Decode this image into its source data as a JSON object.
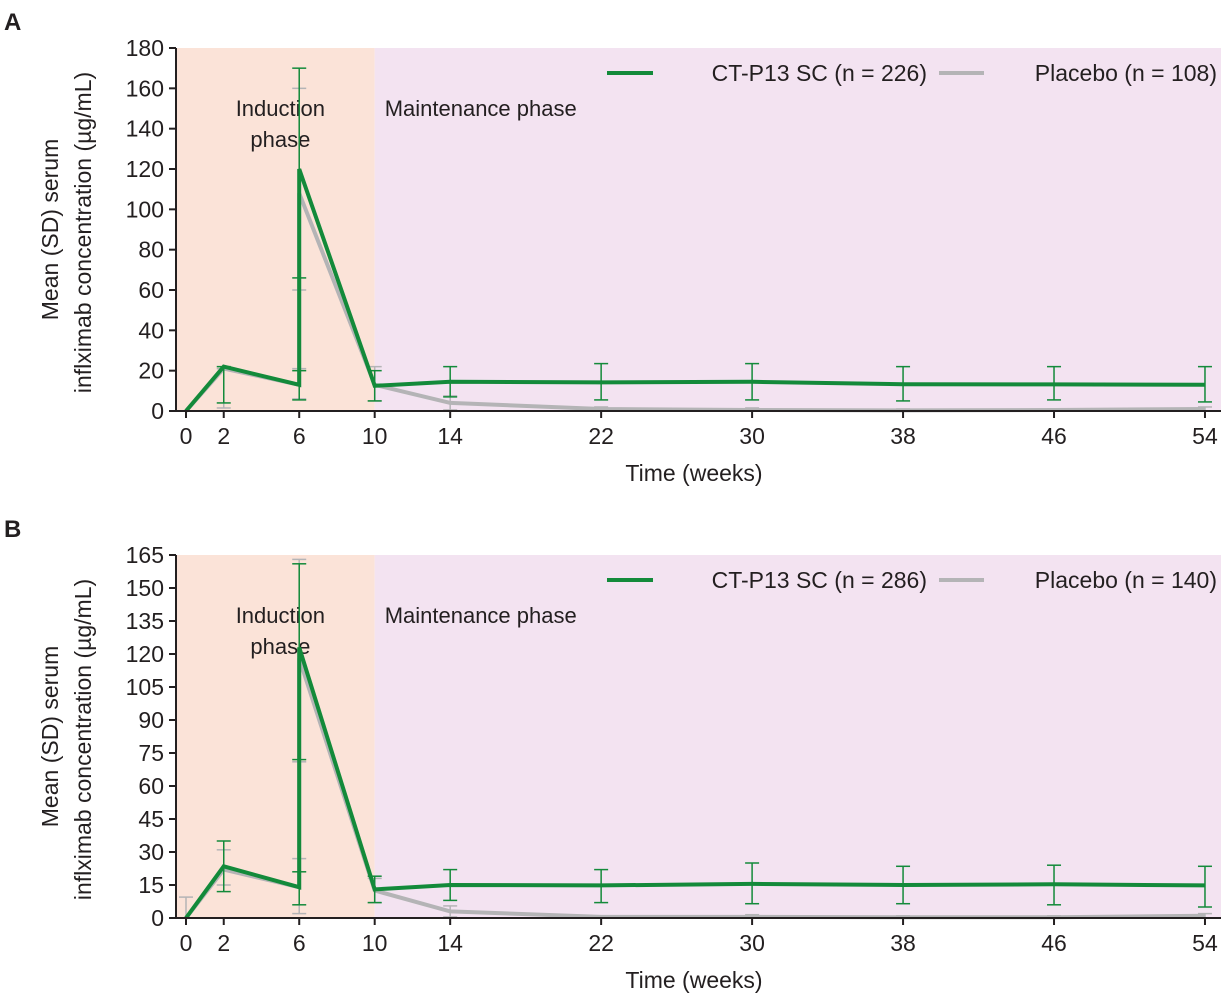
{
  "colors": {
    "induction_bg": "#fbe3d8",
    "maintenance_bg": "#f3e3f1",
    "ctp13": "#138a3a",
    "placebo": "#b4b4b6",
    "axis": "#231f20"
  },
  "chart_data": [
    {
      "type": "line",
      "panel": "A",
      "xlabel": "Time (weeks)",
      "ylabel_line1": "Mean (SD) serum",
      "ylabel_line2": "inflximab concentration (µg/mL)",
      "ylim": [
        0,
        180
      ],
      "yticks": [
        0,
        20,
        40,
        60,
        80,
        100,
        120,
        140,
        160,
        180
      ],
      "xlim": [
        -0.5,
        55
      ],
      "xticks": [
        0,
        2,
        6,
        10,
        14,
        22,
        30,
        38,
        46,
        54
      ],
      "phases": [
        {
          "label_line1": "Induction",
          "label_line2": "phase",
          "start": -0.5,
          "end": 10
        },
        {
          "label_line1": "Maintenance phase",
          "label_line2": "",
          "start": 10,
          "end": 55
        }
      ],
      "legend_position": "top-right",
      "series": [
        {
          "name": "CT-P13 SC (n = 226)",
          "color_key": "ctp13",
          "points": [
            {
              "x": 0,
              "y": 0,
              "sd_low": 0,
              "sd_high": 0
            },
            {
              "x": 2,
              "y": 22,
              "sd_low": 4,
              "sd_high": 22
            },
            {
              "x": 6,
              "y": 13,
              "sd_low": 5.5,
              "sd_high": 20
            },
            {
              "x": 6,
              "y": 120,
              "sd_low": 66,
              "sd_high": 170
            },
            {
              "x": 10,
              "y": 12.5,
              "sd_low": 5,
              "sd_high": 20
            },
            {
              "x": 14,
              "y": 14.5,
              "sd_low": 7,
              "sd_high": 22
            },
            {
              "x": 22,
              "y": 14.2,
              "sd_low": 5.5,
              "sd_high": 23.5
            },
            {
              "x": 30,
              "y": 14.5,
              "sd_low": 5.5,
              "sd_high": 23.5
            },
            {
              "x": 38,
              "y": 13.3,
              "sd_low": 5,
              "sd_high": 22
            },
            {
              "x": 46,
              "y": 13.2,
              "sd_low": 5.5,
              "sd_high": 22
            },
            {
              "x": 54,
              "y": 13,
              "sd_low": 4.5,
              "sd_high": 22
            }
          ]
        },
        {
          "name": "Placebo (n = 108)",
          "color_key": "placebo",
          "points": [
            {
              "x": 0,
              "y": 0,
              "sd_low": 0,
              "sd_high": 0
            },
            {
              "x": 2,
              "y": 21,
              "sd_low": 1.5,
              "sd_high": 21
            },
            {
              "x": 6,
              "y": 13,
              "sd_low": 6,
              "sd_high": 21
            },
            {
              "x": 6,
              "y": 108,
              "sd_low": 60,
              "sd_high": 160
            },
            {
              "x": 10,
              "y": 13,
              "sd_low": 5,
              "sd_high": 22
            },
            {
              "x": 14,
              "y": 4,
              "sd_low": 0.5,
              "sd_high": 7.5
            },
            {
              "x": 22,
              "y": 1,
              "sd_low": 0,
              "sd_high": 2
            },
            {
              "x": 30,
              "y": 0.5,
              "sd_low": 0,
              "sd_high": 1.5
            },
            {
              "x": 38,
              "y": 0.3,
              "sd_low": 0,
              "sd_high": 1
            },
            {
              "x": 46,
              "y": 0.5,
              "sd_low": 0,
              "sd_high": 1
            },
            {
              "x": 54,
              "y": 1,
              "sd_low": 0,
              "sd_high": 2
            }
          ]
        }
      ]
    },
    {
      "type": "line",
      "panel": "B",
      "xlabel": "Time (weeks)",
      "ylabel_line1": "Mean (SD) serum",
      "ylabel_line2": "inflximab concentration (µg/mL)",
      "ylim": [
        0,
        165
      ],
      "yticks": [
        0,
        15,
        30,
        45,
        60,
        75,
        90,
        105,
        120,
        135,
        150,
        165
      ],
      "xlim": [
        -0.5,
        55
      ],
      "xticks": [
        0,
        2,
        6,
        10,
        14,
        22,
        30,
        38,
        46,
        54
      ],
      "phases": [
        {
          "label_line1": "Induction",
          "label_line2": "phase",
          "start": -0.5,
          "end": 10
        },
        {
          "label_line1": "Maintenance phase",
          "label_line2": "",
          "start": 10,
          "end": 55
        }
      ],
      "legend_position": "top-right",
      "series": [
        {
          "name": "CT-P13 SC (n = 286)",
          "color_key": "ctp13",
          "points": [
            {
              "x": 0,
              "y": 0,
              "sd_low": 0,
              "sd_high": 0
            },
            {
              "x": 2,
              "y": 23.5,
              "sd_low": 12,
              "sd_high": 35
            },
            {
              "x": 6,
              "y": 14,
              "sd_low": 6,
              "sd_high": 21
            },
            {
              "x": 6,
              "y": 123,
              "sd_low": 72,
              "sd_high": 161
            },
            {
              "x": 10,
              "y": 13,
              "sd_low": 7,
              "sd_high": 19
            },
            {
              "x": 14,
              "y": 15,
              "sd_low": 8,
              "sd_high": 22
            },
            {
              "x": 22,
              "y": 14.8,
              "sd_low": 7,
              "sd_high": 22
            },
            {
              "x": 30,
              "y": 15.5,
              "sd_low": 6.5,
              "sd_high": 25
            },
            {
              "x": 38,
              "y": 15,
              "sd_low": 6.5,
              "sd_high": 23.5
            },
            {
              "x": 46,
              "y": 15.3,
              "sd_low": 6,
              "sd_high": 24
            },
            {
              "x": 54,
              "y": 14.8,
              "sd_low": 5,
              "sd_high": 23.5
            }
          ]
        },
        {
          "name": "Placebo (n = 140)",
          "color_key": "placebo",
          "points": [
            {
              "x": 0,
              "y": 0,
              "sd_low": 0,
              "sd_high": 9.5
            },
            {
              "x": 2,
              "y": 22,
              "sd_low": 15,
              "sd_high": 31
            },
            {
              "x": 6,
              "y": 14,
              "sd_low": 2,
              "sd_high": 27
            },
            {
              "x": 6,
              "y": 118,
              "sd_low": 71,
              "sd_high": 163
            },
            {
              "x": 10,
              "y": 12.5,
              "sd_low": 7,
              "sd_high": 18
            },
            {
              "x": 14,
              "y": 3,
              "sd_low": 0.5,
              "sd_high": 5.5
            },
            {
              "x": 22,
              "y": 0.5,
              "sd_low": 0,
              "sd_high": 1
            },
            {
              "x": 30,
              "y": 0.5,
              "sd_low": 0,
              "sd_high": 1.5
            },
            {
              "x": 38,
              "y": 0.3,
              "sd_low": 0,
              "sd_high": 1
            },
            {
              "x": 46,
              "y": 0.3,
              "sd_low": 0,
              "sd_high": 1
            },
            {
              "x": 54,
              "y": 1,
              "sd_low": 0,
              "sd_high": 2
            }
          ]
        }
      ]
    }
  ]
}
